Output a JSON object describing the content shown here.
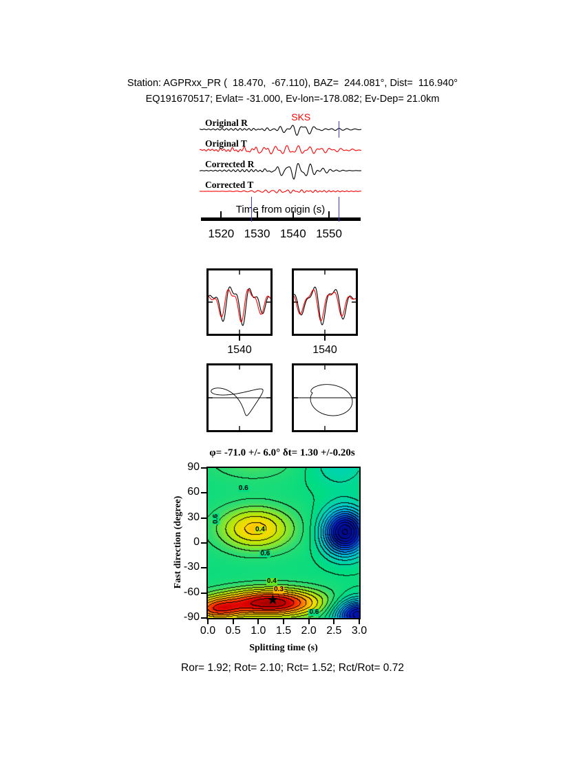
{
  "header": {
    "line1": "Station: AGPRxx_PR (  18.470,  -67.110), BAZ=  244.081°, Dist=  116.940°",
    "line2": "EQ191670517; Evlat= -31.000, Ev-lon=-178.082; Ev-Dep= 21.0km"
  },
  "footer": {
    "stats": "Ror= 1.92; Rot= 2.10; Rct= 1.52; Rct/Rot= 0.72"
  },
  "chart_data": [
    {
      "id": "seismogram-panel",
      "type": "line",
      "x_label": "Time from origin (s)",
      "x_range": [
        1514,
        1559
      ],
      "x_ticks": [
        1520,
        1530,
        1540,
        1550
      ],
      "phase": {
        "label": "SKS",
        "color": "#ff0000",
        "time": 1542
      },
      "window_marker_color": "#3434e0",
      "window_markers": [
        {
          "time": 1528.3,
          "rows": [
            "axis"
          ]
        },
        {
          "time": 1552.6,
          "rows": [
            "axis",
            "top"
          ]
        }
      ],
      "traces": [
        {
          "name": "Original R",
          "color": "#000000",
          "components": [
            {
              "a": 6,
              "f": 0.3,
              "ph": 0,
              "tc": 1542,
              "w": 5
            },
            {
              "a": 3,
              "f": 0.55,
              "ph": 1.2,
              "tc": 1540,
              "w": 8
            },
            {
              "a": 1.3,
              "f": 0.8,
              "ph": 0.3,
              "tc": 1525,
              "w": 10
            },
            {
              "a": 1.2,
              "f": 0.45,
              "ph": 2.1,
              "tc": 1553,
              "w": 6
            }
          ]
        },
        {
          "name": "Original T",
          "color": "#ff0000",
          "components": [
            {
              "a": 4.5,
              "f": 0.33,
              "ph": 0.8,
              "tc": 1538,
              "w": 14
            },
            {
              "a": 2.2,
              "f": 0.6,
              "ph": 2.0,
              "tc": 1540,
              "w": 16
            },
            {
              "a": 1.6,
              "f": 0.9,
              "ph": 0.5,
              "tc": 1524,
              "w": 10
            }
          ]
        },
        {
          "name": "Corrected R",
          "color": "#000000",
          "components": [
            {
              "a": 9,
              "f": 0.32,
              "ph": 0.2,
              "tc": 1541,
              "w": 6
            },
            {
              "a": 4,
              "f": 0.55,
              "ph": 1.5,
              "tc": 1543,
              "w": 8
            },
            {
              "a": 1.6,
              "f": 0.8,
              "ph": 0.9,
              "tc": 1527,
              "w": 9
            }
          ]
        },
        {
          "name": "Corrected T",
          "color": "#ff0000",
          "components": [
            {
              "a": 1.8,
              "f": 0.5,
              "ph": 0.5,
              "tc": 1536,
              "w": 10
            },
            {
              "a": 1.1,
              "f": 0.8,
              "ph": 1.8,
              "tc": 1545,
              "w": 12
            }
          ]
        }
      ]
    },
    {
      "id": "window-seismogram-left",
      "type": "line",
      "x_tick_label": "1540",
      "curves": [
        {
          "color": "#000000",
          "components": [
            {
              "a": 25,
              "f": 3.1,
              "ph": 0.4,
              "tc": 0.45,
              "w": 0.45
            },
            {
              "a": 11,
              "f": 6.2,
              "ph": 1.8,
              "tc": 0.5,
              "w": 0.55
            }
          ]
        },
        {
          "color": "#ff0000",
          "components": [
            {
              "a": 21,
              "f": 3.1,
              "ph": 0.9,
              "tc": 0.5,
              "w": 0.5
            },
            {
              "a": 9,
              "f": 6.2,
              "ph": 2.7,
              "tc": 0.45,
              "w": 0.55
            }
          ]
        }
      ]
    },
    {
      "id": "window-seismogram-right",
      "type": "line",
      "x_tick_label": "1540",
      "curves": [
        {
          "color": "#000000",
          "components": [
            {
              "a": 24,
              "f": 3.0,
              "ph": 2.2,
              "tc": 0.5,
              "w": 0.5
            },
            {
              "a": 10,
              "f": 5.8,
              "ph": 0.9,
              "tc": 0.5,
              "w": 0.6
            }
          ]
        },
        {
          "color": "#ff0000",
          "components": [
            {
              "a": 20,
              "f": 3.0,
              "ph": 2.6,
              "tc": 0.45,
              "w": 0.55
            },
            {
              "a": 8,
              "f": 5.8,
              "ph": 1.6,
              "tc": 0.5,
              "w": 0.6
            }
          ]
        }
      ]
    },
    {
      "id": "particle-motion-left",
      "type": "parametric",
      "baseline": true,
      "curves": [
        {
          "color": "#000000",
          "x_components": [
            {
              "a": 32,
              "f": 2.6,
              "ph": 0.3
            },
            {
              "a": 12,
              "f": 5.2,
              "ph": 1.1
            }
          ],
          "y_components": [
            {
              "a": 15,
              "f": 2.6,
              "ph": 2.5
            },
            {
              "a": 11,
              "f": 5.2,
              "ph": 0.2
            }
          ]
        }
      ]
    },
    {
      "id": "particle-motion-right",
      "type": "parametric",
      "baseline": true,
      "curves": [
        {
          "color": "#000000",
          "x_components": [
            {
              "a": 29,
              "f": 2.4,
              "ph": 1.0
            },
            {
              "a": 11,
              "f": 4.8,
              "ph": 0.4
            }
          ],
          "y_components": [
            {
              "a": 19,
              "f": 2.4,
              "ph": 2.9
            },
            {
              "a": 8,
              "f": 4.8,
              "ph": 1.9
            }
          ]
        }
      ]
    },
    {
      "id": "splitting-misfit-contour",
      "type": "heatmap",
      "title": "φ= -71.0 +/- 6.0° δt= 1.30 +/-0.20s",
      "best_phi": "-71.0 +/- 6.0",
      "best_dt": "1.30 +/-0.20",
      "xlabel": "Splitting time (s)",
      "ylabel": "Fast direction (degree)",
      "xlim": [
        0,
        3
      ],
      "ylim": [
        -90,
        90
      ],
      "x_ticks": [
        "0.0",
        "0.5",
        "1.0",
        "1.5",
        "2.0",
        "2.5",
        "3.0"
      ],
      "y_ticks": [
        90,
        60,
        30,
        0,
        -30,
        -60,
        -90
      ],
      "grid": false,
      "contour_interval": 0.05,
      "base_level": 0.64,
      "gaussians": [
        {
          "amp": -0.48,
          "x": 1.25,
          "sx": 1.0,
          "y": -72,
          "sy": 17
        },
        {
          "amp": -0.28,
          "x": 0.15,
          "sx": 0.5,
          "y": -80,
          "sy": 14
        },
        {
          "amp": -0.26,
          "x": 0.95,
          "sx": 0.75,
          "y": 17,
          "sy": 26
        },
        {
          "amp": 0.62,
          "x": 2.72,
          "sx": 0.42,
          "y": 13,
          "sy": 26
        },
        {
          "amp": 0.55,
          "x": 2.98,
          "sx": 0.45,
          "y": -86,
          "sy": 18
        },
        {
          "amp": -0.09,
          "x": 0.9,
          "sx": 0.9,
          "y": 100,
          "sy": 25
        },
        {
          "amp": 0.1,
          "x": 2.6,
          "sx": 0.6,
          "y": 95,
          "sy": 30
        }
      ],
      "colormap": [
        [
          0.15,
          "#a00000"
        ],
        [
          0.22,
          "#dc0000"
        ],
        [
          0.28,
          "#ff3c00"
        ],
        [
          0.34,
          "#ff9600"
        ],
        [
          0.4,
          "#ffd800"
        ],
        [
          0.46,
          "#c8e600"
        ],
        [
          0.52,
          "#82e632"
        ],
        [
          0.58,
          "#32dc6e"
        ],
        [
          0.66,
          "#00dc82"
        ],
        [
          0.74,
          "#00d2b4"
        ],
        [
          0.82,
          "#00c8dc"
        ],
        [
          0.9,
          "#0096e6"
        ],
        [
          1.0,
          "#0050e6"
        ],
        [
          1.1,
          "#0018c8"
        ],
        [
          1.25,
          "#000a8c"
        ]
      ],
      "star": {
        "x": 1.3,
        "y": -71,
        "symbol": "★",
        "color": "#000000"
      },
      "contour_labels": [
        {
          "text": "0.6",
          "x": 0.72,
          "y": 64,
          "rot": 0,
          "bg": "#00dc82"
        },
        {
          "text": "0.6",
          "x": 0.18,
          "y": 28,
          "rot": -90,
          "bg": "#00dc82"
        },
        {
          "text": "0.4",
          "x": 1.05,
          "y": 15,
          "rot": 0,
          "bg": "#c8e600"
        },
        {
          "text": "0.6",
          "x": 1.15,
          "y": -14,
          "rot": 0,
          "bg": "#00dc82"
        },
        {
          "text": "0.4",
          "x": 1.28,
          "y": -47,
          "rot": 0,
          "bg": "#64e61e"
        },
        {
          "text": "0.3",
          "x": 1.42,
          "y": -57,
          "rot": 0,
          "bg": "#ffb400"
        },
        {
          "text": "0.6",
          "x": 2.12,
          "y": -84,
          "rot": 0,
          "bg": "#00dc82"
        }
      ]
    }
  ]
}
